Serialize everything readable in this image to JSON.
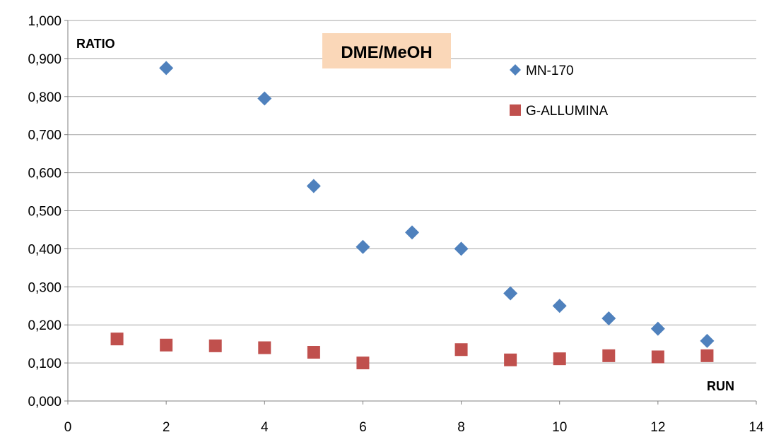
{
  "chart_data": {
    "type": "scatter",
    "title": "DME/MeOH",
    "ylabel": "RATIO",
    "xlabel": "RUN",
    "xlim": [
      0,
      14
    ],
    "ylim": [
      0,
      1
    ],
    "x_ticks": [
      0,
      2,
      4,
      6,
      8,
      10,
      12,
      14
    ],
    "y_ticks": [
      "0,000",
      "0,100",
      "0,200",
      "0,300",
      "0,400",
      "0,500",
      "0,600",
      "0,700",
      "0,800",
      "0,900",
      "1,000"
    ],
    "y_tick_values": [
      0,
      0.1,
      0.2,
      0.3,
      0.4,
      0.5,
      0.6,
      0.7,
      0.8,
      0.9,
      1.0
    ],
    "grid": {
      "horizontal": true,
      "vertical": false
    },
    "legend_position": "top-right",
    "series": [
      {
        "name": "MN-170",
        "marker": "diamond",
        "color": "#4F81BD",
        "x": [
          2,
          4,
          5,
          6,
          7,
          8,
          9,
          10,
          11,
          12,
          13
        ],
        "y": [
          0.875,
          0.795,
          0.565,
          0.405,
          0.443,
          0.4,
          0.283,
          0.25,
          0.217,
          0.19,
          0.158
        ]
      },
      {
        "name": "G-ALLUMINA",
        "marker": "square",
        "color": "#C0504D",
        "x": [
          1,
          2,
          3,
          4,
          5,
          6,
          8,
          9,
          10,
          11,
          12,
          13
        ],
        "y": [
          0.163,
          0.147,
          0.145,
          0.14,
          0.128,
          0.1,
          0.135,
          0.108,
          0.111,
          0.119,
          0.116,
          0.119
        ]
      }
    ],
    "colors": {
      "title_background": "#FAD7B8",
      "grid": "#A6A6A6",
      "axis": "#808080"
    }
  }
}
